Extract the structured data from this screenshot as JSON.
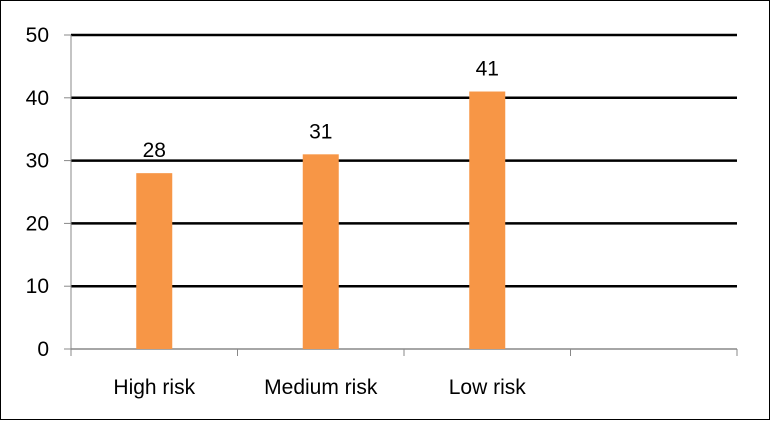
{
  "chart_data": {
    "type": "bar",
    "categories": [
      "High risk",
      "Medium risk",
      "Low risk",
      ""
    ],
    "values": [
      28,
      31,
      41,
      null
    ],
    "data_labels": [
      "28",
      "31",
      "41",
      ""
    ],
    "yticks": [
      0,
      10,
      20,
      30,
      40,
      50
    ],
    "ytick_labels": [
      "0",
      "10",
      "20",
      "30",
      "40",
      "50"
    ],
    "ylim": [
      0,
      50
    ],
    "grid": true,
    "legend": "none",
    "title": "",
    "xlabel": "",
    "ylabel": "",
    "colors": {
      "bar": "#F79646",
      "grid": "#000000",
      "axis": "#888888",
      "text": "#000000"
    }
  }
}
